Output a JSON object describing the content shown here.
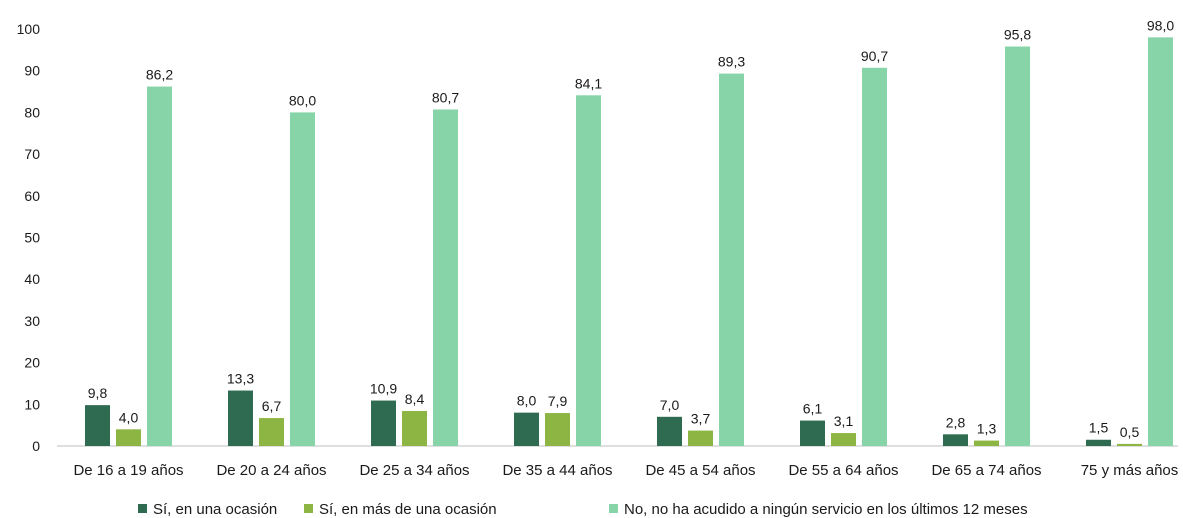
{
  "chart_data": {
    "type": "bar",
    "categories": [
      "De 16 a 19 años",
      "De 20 a 24 años",
      "De 25 a 34 años",
      "De 35 a 44 años",
      "De 45 a 54 años",
      "De 55 a 64 años",
      "De 65 a 74 años",
      "75 y más años"
    ],
    "series": [
      {
        "name": "Sí, en una ocasión",
        "color": "#2f6b50",
        "values": [
          9.8,
          13.3,
          10.9,
          8.0,
          7.0,
          6.1,
          2.8,
          1.5
        ],
        "labels": [
          "9,8",
          "13,3",
          "10,9",
          "8,0",
          "7,0",
          "6,1",
          "2,8",
          "1,5"
        ]
      },
      {
        "name": "Sí, en más de una ocasión",
        "color": "#8db543",
        "values": [
          4.0,
          6.7,
          8.4,
          7.9,
          3.7,
          3.1,
          1.3,
          0.5
        ],
        "labels": [
          "4,0",
          "6,7",
          "8,4",
          "7,9",
          "3,7",
          "3,1",
          "1,3",
          "0,5"
        ]
      },
      {
        "name": "No, no ha acudido a ningún servicio en los últimos 12 meses",
        "color": "#86d4a8",
        "values": [
          86.2,
          80.0,
          80.7,
          84.1,
          89.3,
          90.7,
          95.8,
          98.0
        ],
        "labels": [
          "86,2",
          "80,0",
          "80,7",
          "84,1",
          "89,3",
          "90,7",
          "95,8",
          "98,0"
        ]
      }
    ],
    "ylim": [
      0,
      100
    ],
    "yticks": [
      "0",
      "10",
      "20",
      "30",
      "40",
      "50",
      "60",
      "70",
      "80",
      "90",
      "100"
    ],
    "legend_position": "bottom",
    "grid": false
  }
}
